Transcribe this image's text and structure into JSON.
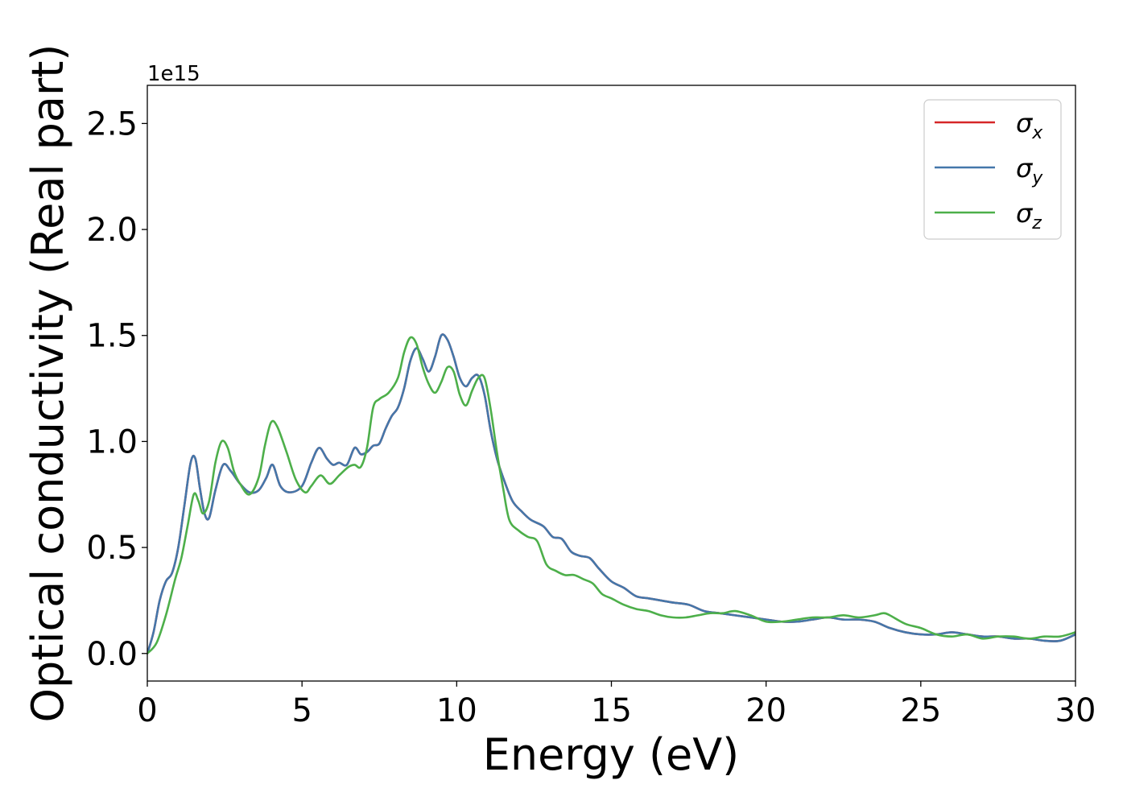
{
  "chart_data": {
    "type": "line",
    "xlabel": "Energy (eV)",
    "ylabel": "Optical conductivity (Real part)",
    "y_offset_text": "1e15",
    "xlim": [
      0,
      30
    ],
    "ylim": [
      -0.13,
      2.68
    ],
    "y_scale_factor": 1000000000000000.0,
    "x_ticks": [
      0,
      5,
      10,
      15,
      20,
      25,
      30
    ],
    "x_tick_labels": [
      "0",
      "5",
      "10",
      "15",
      "20",
      "25",
      "30"
    ],
    "y_ticks": [
      0.0,
      0.5,
      1.0,
      1.5,
      2.0,
      2.5
    ],
    "y_tick_labels": [
      "0.0",
      "0.5",
      "1.0",
      "1.5",
      "2.0",
      "2.5"
    ],
    "grid": false,
    "legend_position": "top-right",
    "series": [
      {
        "name": "σx",
        "label_base": "σ",
        "label_sub": "x",
        "color": "#d62728",
        "x": [
          0,
          0.2,
          0.4,
          0.6,
          0.8,
          1.0,
          1.2,
          1.4,
          1.55,
          1.7,
          1.85,
          2.0,
          2.2,
          2.45,
          2.7,
          3.0,
          3.3,
          3.6,
          3.85,
          4.05,
          4.3,
          4.6,
          5.0,
          5.3,
          5.55,
          5.8,
          6.0,
          6.2,
          6.45,
          6.7,
          6.9,
          7.1,
          7.3,
          7.5,
          7.7,
          7.9,
          8.1,
          8.3,
          8.5,
          8.7,
          8.9,
          9.1,
          9.3,
          9.5,
          9.7,
          9.9,
          10.1,
          10.3,
          10.5,
          10.7,
          10.9,
          11.1,
          11.3,
          11.5,
          11.8,
          12.1,
          12.4,
          12.8,
          13.1,
          13.4,
          13.7,
          14.0,
          14.3,
          14.6,
          15.0,
          15.4,
          15.8,
          16.2,
          16.6,
          17.0,
          17.5,
          18.0,
          18.5,
          19.0,
          19.5,
          20.0,
          20.5,
          21.0,
          21.5,
          22.0,
          22.5,
          23.0,
          23.5,
          24.0,
          24.5,
          25.0,
          25.5,
          26.0,
          26.5,
          27.0,
          27.5,
          28.0,
          28.5,
          29.0,
          29.5,
          30.0
        ],
        "y": [
          0.0,
          0.1,
          0.25,
          0.34,
          0.38,
          0.5,
          0.7,
          0.9,
          0.92,
          0.78,
          0.66,
          0.64,
          0.77,
          0.89,
          0.86,
          0.8,
          0.76,
          0.77,
          0.83,
          0.89,
          0.79,
          0.76,
          0.79,
          0.9,
          0.97,
          0.92,
          0.89,
          0.9,
          0.89,
          0.97,
          0.94,
          0.95,
          0.98,
          0.99,
          1.06,
          1.12,
          1.16,
          1.25,
          1.38,
          1.44,
          1.39,
          1.33,
          1.4,
          1.5,
          1.48,
          1.4,
          1.3,
          1.26,
          1.3,
          1.31,
          1.22,
          1.05,
          0.92,
          0.83,
          0.72,
          0.67,
          0.63,
          0.6,
          0.55,
          0.54,
          0.48,
          0.46,
          0.45,
          0.4,
          0.34,
          0.31,
          0.27,
          0.26,
          0.25,
          0.24,
          0.23,
          0.2,
          0.19,
          0.18,
          0.17,
          0.16,
          0.15,
          0.15,
          0.16,
          0.17,
          0.16,
          0.16,
          0.15,
          0.12,
          0.1,
          0.09,
          0.09,
          0.1,
          0.09,
          0.08,
          0.08,
          0.07,
          0.07,
          0.06,
          0.06,
          0.09
        ]
      },
      {
        "name": "σy",
        "label_base": "σ",
        "label_sub": "y",
        "color": "#4477aa",
        "x": [
          0,
          0.2,
          0.4,
          0.6,
          0.8,
          1.0,
          1.2,
          1.4,
          1.55,
          1.7,
          1.85,
          2.0,
          2.2,
          2.45,
          2.7,
          3.0,
          3.3,
          3.6,
          3.85,
          4.05,
          4.3,
          4.6,
          5.0,
          5.3,
          5.55,
          5.8,
          6.0,
          6.2,
          6.45,
          6.7,
          6.9,
          7.1,
          7.3,
          7.5,
          7.7,
          7.9,
          8.1,
          8.3,
          8.5,
          8.7,
          8.9,
          9.1,
          9.3,
          9.5,
          9.7,
          9.9,
          10.1,
          10.3,
          10.5,
          10.7,
          10.9,
          11.1,
          11.3,
          11.5,
          11.8,
          12.1,
          12.4,
          12.8,
          13.1,
          13.4,
          13.7,
          14.0,
          14.3,
          14.6,
          15.0,
          15.4,
          15.8,
          16.2,
          16.6,
          17.0,
          17.5,
          18.0,
          18.5,
          19.0,
          19.5,
          20.0,
          20.5,
          21.0,
          21.5,
          22.0,
          22.5,
          23.0,
          23.5,
          24.0,
          24.5,
          25.0,
          25.5,
          26.0,
          26.5,
          27.0,
          27.5,
          28.0,
          28.5,
          29.0,
          29.5,
          30.0
        ],
        "y": [
          0.0,
          0.1,
          0.25,
          0.34,
          0.38,
          0.5,
          0.7,
          0.9,
          0.92,
          0.78,
          0.66,
          0.64,
          0.77,
          0.89,
          0.86,
          0.8,
          0.76,
          0.77,
          0.83,
          0.89,
          0.79,
          0.76,
          0.79,
          0.9,
          0.97,
          0.92,
          0.89,
          0.9,
          0.89,
          0.97,
          0.94,
          0.95,
          0.98,
          0.99,
          1.06,
          1.12,
          1.16,
          1.25,
          1.38,
          1.44,
          1.39,
          1.33,
          1.4,
          1.5,
          1.48,
          1.4,
          1.3,
          1.26,
          1.3,
          1.31,
          1.22,
          1.05,
          0.92,
          0.83,
          0.72,
          0.67,
          0.63,
          0.6,
          0.55,
          0.54,
          0.48,
          0.46,
          0.45,
          0.4,
          0.34,
          0.31,
          0.27,
          0.26,
          0.25,
          0.24,
          0.23,
          0.2,
          0.19,
          0.18,
          0.17,
          0.16,
          0.15,
          0.15,
          0.16,
          0.17,
          0.16,
          0.16,
          0.15,
          0.12,
          0.1,
          0.09,
          0.09,
          0.1,
          0.09,
          0.08,
          0.08,
          0.07,
          0.07,
          0.06,
          0.06,
          0.09
        ]
      },
      {
        "name": "σz",
        "label_base": "σ",
        "label_sub": "z",
        "color": "#4daf4a",
        "x": [
          0,
          0.3,
          0.6,
          0.9,
          1.1,
          1.3,
          1.5,
          1.65,
          1.8,
          2.0,
          2.2,
          2.4,
          2.6,
          2.8,
          3.0,
          3.3,
          3.6,
          3.8,
          4.0,
          4.2,
          4.5,
          4.8,
          5.1,
          5.3,
          5.6,
          5.9,
          6.2,
          6.5,
          6.7,
          6.9,
          7.1,
          7.3,
          7.5,
          7.8,
          8.1,
          8.3,
          8.5,
          8.7,
          8.9,
          9.1,
          9.3,
          9.5,
          9.7,
          9.9,
          10.1,
          10.3,
          10.5,
          10.7,
          10.9,
          11.1,
          11.3,
          11.5,
          11.7,
          12.0,
          12.3,
          12.6,
          12.9,
          13.2,
          13.5,
          13.8,
          14.1,
          14.4,
          14.7,
          15.0,
          15.4,
          15.8,
          16.2,
          16.6,
          17.0,
          17.4,
          17.8,
          18.2,
          18.6,
          19.0,
          19.5,
          20.0,
          20.5,
          21.0,
          21.5,
          22.0,
          22.5,
          23.0,
          23.5,
          23.8,
          24.0,
          24.5,
          25.0,
          25.5,
          26.0,
          26.5,
          27.0,
          27.5,
          28.0,
          28.5,
          29.0,
          29.5,
          30.0
        ],
        "y": [
          0.0,
          0.05,
          0.18,
          0.35,
          0.45,
          0.6,
          0.75,
          0.72,
          0.66,
          0.72,
          0.9,
          1.0,
          0.97,
          0.86,
          0.8,
          0.75,
          0.83,
          0.98,
          1.09,
          1.07,
          0.95,
          0.82,
          0.76,
          0.79,
          0.84,
          0.8,
          0.84,
          0.88,
          0.89,
          0.88,
          0.97,
          1.16,
          1.2,
          1.23,
          1.3,
          1.42,
          1.49,
          1.46,
          1.35,
          1.27,
          1.23,
          1.28,
          1.35,
          1.33,
          1.22,
          1.17,
          1.24,
          1.3,
          1.3,
          1.15,
          0.95,
          0.78,
          0.63,
          0.58,
          0.55,
          0.53,
          0.42,
          0.39,
          0.37,
          0.37,
          0.35,
          0.33,
          0.28,
          0.26,
          0.23,
          0.21,
          0.2,
          0.18,
          0.17,
          0.17,
          0.18,
          0.19,
          0.19,
          0.2,
          0.18,
          0.15,
          0.15,
          0.16,
          0.17,
          0.17,
          0.18,
          0.17,
          0.18,
          0.19,
          0.18,
          0.14,
          0.12,
          0.09,
          0.08,
          0.09,
          0.07,
          0.08,
          0.08,
          0.07,
          0.08,
          0.08,
          0.1
        ]
      }
    ]
  }
}
